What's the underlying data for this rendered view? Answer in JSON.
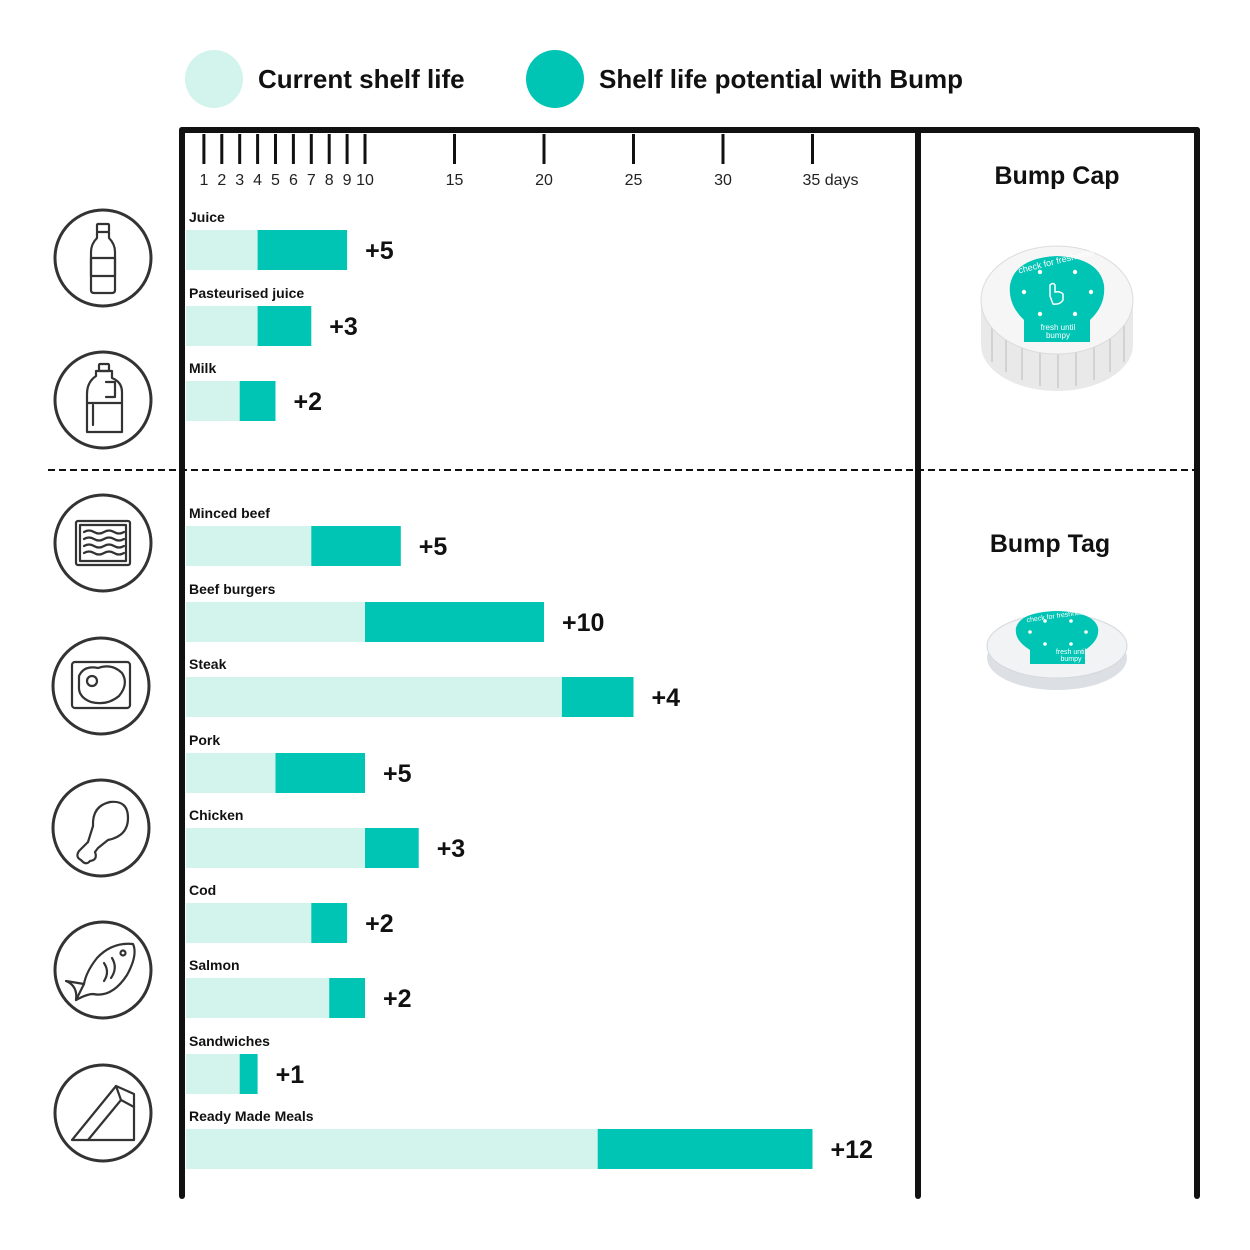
{
  "legend": {
    "current": {
      "label": "Current shelf life",
      "color": "#d2f4ec"
    },
    "potential": {
      "label": "Shelf life potential with Bump",
      "color": "#00c4b4"
    }
  },
  "panels": {
    "cap": {
      "title": "Bump Cap",
      "lines": [
        "check for freshness",
        "fresh until",
        "bumpy"
      ]
    },
    "tag": {
      "title": "Bump Tag",
      "lines": [
        "check for freshness",
        "fresh until",
        "bumpy"
      ]
    }
  },
  "icons": [
    "bottle-icon",
    "milk-jug-icon",
    "minced-meat-icon",
    "steak-icon",
    "chicken-leg-icon",
    "fish-icon",
    "sandwich-icon"
  ],
  "chart_data": {
    "type": "bar",
    "orientation": "horizontal",
    "stacked": true,
    "xlabel": "",
    "xunit": "days",
    "xlim": [
      0,
      36
    ],
    "ticks": [
      1,
      2,
      3,
      4,
      5,
      6,
      7,
      8,
      9,
      10,
      15,
      20,
      25,
      30,
      35
    ],
    "tick_labels": [
      "1",
      "2",
      "3",
      "4",
      "5",
      "6",
      "7",
      "8",
      "9",
      "10",
      "15",
      "20",
      "25",
      "30",
      "35 days"
    ],
    "categories": [
      "Juice",
      "Pasteurised juice",
      "Milk",
      "Minced beef",
      "Beef burgers",
      "Steak",
      "Pork",
      "Chicken",
      "Cod",
      "Salmon",
      "Sandwiches",
      "Ready Made Meals"
    ],
    "series": [
      {
        "name": "Current shelf life",
        "values": [
          4,
          4,
          3,
          7,
          10,
          21,
          5,
          10,
          7,
          8,
          3,
          23
        ]
      },
      {
        "name": "Shelf life potential with Bump",
        "values": [
          5,
          3,
          2,
          5,
          10,
          4,
          5,
          3,
          2,
          2,
          1,
          12
        ]
      }
    ],
    "gain_labels": [
      "+5",
      "+3",
      "+2",
      "+5",
      "+10",
      "+4",
      "+5",
      "+3",
      "+2",
      "+2",
      "+1",
      "+12"
    ]
  }
}
